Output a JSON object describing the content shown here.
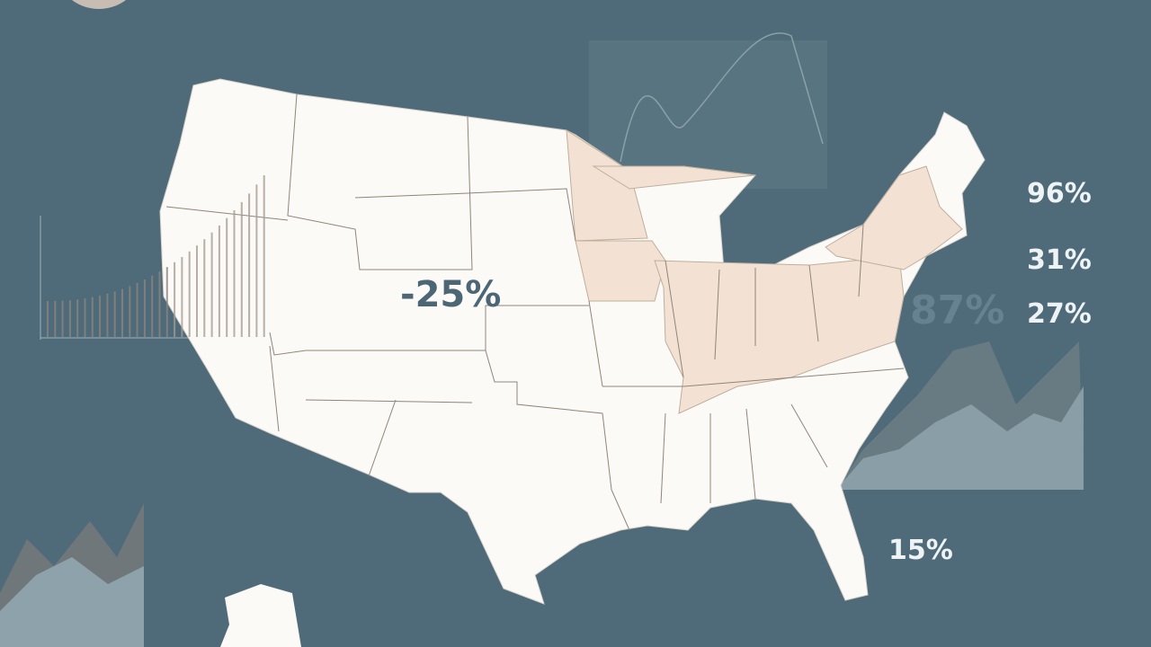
{
  "colors": {
    "background": "#4f6b79",
    "land": "#fbfaf7",
    "highlight": "#f3e2d3",
    "border": "#8f8578"
  },
  "map": {
    "region": "United States"
  },
  "labels": {
    "center": "-25%",
    "right_1": "96%",
    "right_2": "31%",
    "right_3": "27%",
    "faded": "87%",
    "southeast": "15%"
  }
}
